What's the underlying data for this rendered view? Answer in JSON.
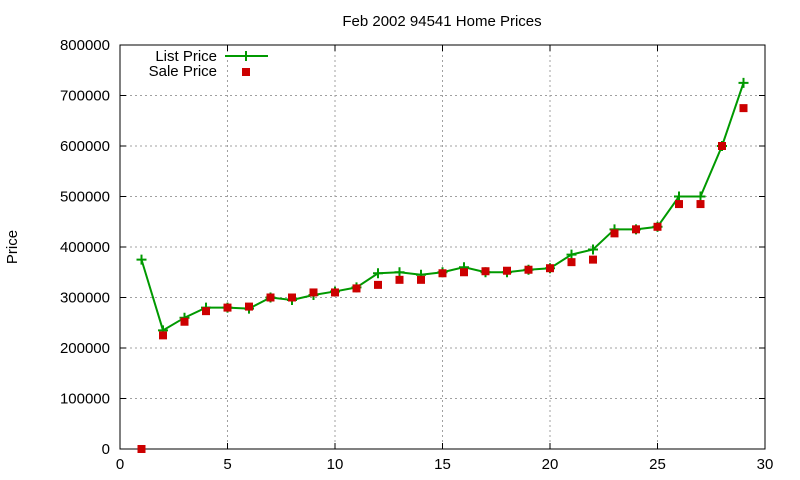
{
  "chart_data": {
    "type": "line",
    "title": "Feb 2002 94541 Home Prices",
    "xlabel": "",
    "ylabel": "Price",
    "xlim": [
      0,
      30
    ],
    "ylim": [
      0,
      800000
    ],
    "xticks": [
      0,
      5,
      10,
      15,
      20,
      25,
      30
    ],
    "yticks": [
      0,
      100000,
      200000,
      300000,
      400000,
      500000,
      600000,
      700000,
      800000
    ],
    "grid": true,
    "legend_position": "top-left",
    "series": [
      {
        "name": "List Price",
        "style": "line-with-plus-markers",
        "color": "#009900",
        "x": [
          1,
          2,
          3,
          4,
          5,
          6,
          7,
          8,
          9,
          10,
          11,
          12,
          13,
          14,
          15,
          16,
          17,
          18,
          19,
          20,
          21,
          22,
          23,
          24,
          25,
          26,
          27,
          28,
          29
        ],
        "y": [
          375000,
          235000,
          260000,
          280000,
          280000,
          278000,
          300000,
          295000,
          305000,
          312000,
          320000,
          348000,
          350000,
          345000,
          350000,
          360000,
          350000,
          350000,
          355000,
          358000,
          385000,
          395000,
          435000,
          435000,
          440000,
          500000,
          500000,
          600000,
          725000
        ]
      },
      {
        "name": "Sale Price",
        "style": "square-markers",
        "color": "#cc0000",
        "x": [
          1,
          2,
          3,
          4,
          5,
          6,
          7,
          8,
          9,
          10,
          11,
          12,
          13,
          14,
          15,
          16,
          17,
          18,
          19,
          20,
          21,
          22,
          23,
          24,
          25,
          26,
          27,
          28,
          29
        ],
        "y": [
          0,
          225000,
          252000,
          273000,
          280000,
          282000,
          300000,
          300000,
          310000,
          310000,
          318000,
          325000,
          335000,
          335000,
          348000,
          350000,
          352000,
          353000,
          355000,
          358000,
          370000,
          375000,
          427000,
          435000,
          440000,
          485000,
          485000,
          600000,
          675000
        ]
      }
    ]
  }
}
